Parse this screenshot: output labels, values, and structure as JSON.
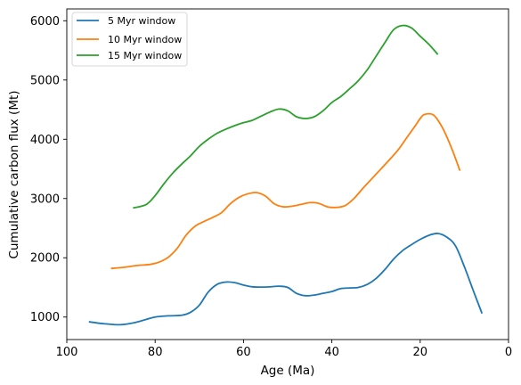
{
  "chart_data": {
    "type": "line",
    "title": "",
    "xlabel": "Age (Ma)",
    "ylabel": "Cumulative carbon flux (Mt)",
    "xlim": [
      100,
      0
    ],
    "ylim": [
      620,
      6200
    ],
    "x_inverted": true,
    "grid": false,
    "legend_position": "top-left",
    "xticks": [
      100,
      80,
      60,
      40,
      20,
      0
    ],
    "xtick_labels": [
      "100",
      "80",
      "60",
      "40",
      "20",
      "0"
    ],
    "yticks": [
      1000,
      2000,
      3000,
      4000,
      5000,
      6000
    ],
    "ytick_labels": [
      "1000",
      "2000",
      "3000",
      "4000",
      "5000",
      "6000"
    ],
    "series": [
      {
        "name": "5 Myr window",
        "color": "#1f77b4",
        "x": [
          95,
          92,
          88,
          85,
          82,
          80,
          77,
          74,
          72,
          70,
          68,
          66,
          64,
          62,
          60,
          58,
          56,
          54,
          52,
          50,
          48,
          46,
          44,
          42,
          40,
          38,
          36,
          34,
          32,
          30,
          28,
          26,
          24,
          22,
          20,
          18,
          16,
          14,
          12,
          10,
          8,
          6
        ],
        "values": [
          920,
          890,
          870,
          900,
          960,
          1000,
          1020,
          1030,
          1080,
          1200,
          1420,
          1550,
          1590,
          1580,
          1540,
          1510,
          1505,
          1510,
          1520,
          1500,
          1400,
          1360,
          1370,
          1400,
          1430,
          1480,
          1490,
          1500,
          1550,
          1650,
          1800,
          1980,
          2120,
          2220,
          2310,
          2380,
          2410,
          2350,
          2200,
          1850,
          1450,
          1060
        ]
      },
      {
        "name": "10 Myr window",
        "color": "#ff7f0e",
        "x": [
          90,
          87,
          84,
          81,
          79,
          77,
          75,
          73,
          71,
          69,
          67,
          65,
          63,
          61,
          59,
          57,
          55,
          53,
          51,
          49,
          47,
          45,
          43,
          41,
          39,
          37,
          35,
          33,
          31,
          29,
          27,
          25,
          23,
          21,
          20,
          19,
          17,
          15,
          13,
          11
        ],
        "values": [
          1820,
          1840,
          1870,
          1890,
          1930,
          2010,
          2160,
          2380,
          2530,
          2610,
          2680,
          2760,
          2910,
          3020,
          3080,
          3100,
          3040,
          2910,
          2860,
          2870,
          2900,
          2930,
          2920,
          2860,
          2850,
          2880,
          3000,
          3170,
          3330,
          3490,
          3650,
          3820,
          4030,
          4240,
          4350,
          4420,
          4410,
          4200,
          3870,
          3470
        ]
      },
      {
        "name": "15 Myr window",
        "color": "#2ca02c",
        "x": [
          85,
          82,
          80,
          78,
          76,
          74,
          72,
          70,
          68,
          66,
          64,
          62,
          60,
          58,
          56,
          54,
          52,
          50,
          48,
          46,
          44,
          42,
          40,
          38,
          36,
          34,
          32,
          30,
          28,
          26,
          24,
          22,
          20,
          18,
          16
        ],
        "values": [
          2840,
          2900,
          3050,
          3250,
          3430,
          3580,
          3720,
          3880,
          4000,
          4100,
          4170,
          4230,
          4280,
          4320,
          4390,
          4460,
          4510,
          4480,
          4380,
          4350,
          4380,
          4480,
          4620,
          4720,
          4850,
          4990,
          5170,
          5400,
          5630,
          5850,
          5920,
          5880,
          5740,
          5600,
          5430
        ]
      }
    ]
  }
}
